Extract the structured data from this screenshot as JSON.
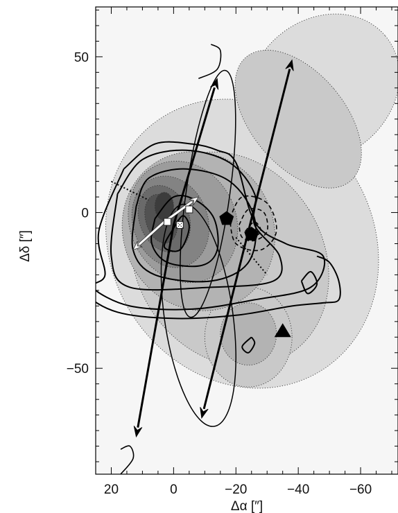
{
  "chart_data": {
    "type": "contour",
    "title": "",
    "xlabel": "Δα [″]",
    "ylabel": "Δδ [″]",
    "x_axis": {
      "range": [
        25,
        -72
      ],
      "reversed": true,
      "ticks": [
        20,
        0,
        -20,
        -40,
        -60
      ],
      "tick_labels": [
        "20",
        "0",
        "−20",
        "−40",
        "−60"
      ]
    },
    "y_axis": {
      "range": [
        -84,
        66
      ],
      "ticks": [
        50,
        0,
        -50
      ],
      "tick_labels": [
        "50",
        "0",
        "−50"
      ]
    },
    "grid": false,
    "legend": "none",
    "colors": {
      "background_field": "#ebebeb",
      "shade_levels": [
        "#ebebeb",
        "#dcdcdc",
        "#c9c9c9",
        "#b3b3b3",
        "#9c9c9c",
        "#838383",
        "#6a6a6a",
        "#525252",
        "#3c3c3c"
      ],
      "line": "#000000",
      "marker_white": "#ffffff"
    },
    "layers": [
      {
        "name": "greyscale filled contours",
        "style": "filled, dotted outlines",
        "blobs": [
          {
            "level": 1,
            "center": [
              -22,
              -10
            ],
            "rx": 42,
            "ry": 48,
            "angle": 32
          },
          {
            "level": 1,
            "center": [
              -48,
              40
            ],
            "rx": 26,
            "ry": 22,
            "angle": 40
          },
          {
            "level": 2,
            "center": [
              -18,
              -15
            ],
            "rx": 30,
            "ry": 36,
            "angle": 32
          },
          {
            "level": 2,
            "center": [
              -40,
              30
            ],
            "rx": 15,
            "ry": 26,
            "angle": 40
          },
          {
            "level": 2,
            "center": [
              -24,
              -40
            ],
            "rx": 14,
            "ry": 16,
            "angle": 0
          },
          {
            "level": 3,
            "center": [
              -8,
              -6
            ],
            "rx": 24,
            "ry": 26,
            "angle": 30
          },
          {
            "level": 3,
            "center": [
              -24,
              -39
            ],
            "rx": 9,
            "ry": 10,
            "angle": 0
          },
          {
            "level": 4,
            "center": [
              -3,
              -3
            ],
            "rx": 17,
            "ry": 20,
            "angle": 25
          },
          {
            "level": 5,
            "center": [
              1,
              -3
            ],
            "rx": 12,
            "ry": 15,
            "angle": 20
          },
          {
            "level": 6,
            "center": [
              3,
              -2
            ],
            "rx": 8,
            "ry": 11,
            "angle": 20
          },
          {
            "level": 7,
            "center": [
              4,
              -2
            ],
            "rx": 5,
            "ry": 8,
            "angle": 15
          },
          {
            "level": 8,
            "center": [
              3,
              2
            ],
            "rx": 3,
            "ry": 4.5,
            "angle": 0
          }
        ]
      },
      {
        "name": "solid contours",
        "style": "solid",
        "curves": [
          [
            [
              0,
              -5
            ],
            [
              3,
              -11
            ],
            [
              -2,
              -12
            ],
            [
              -5,
              -5
            ],
            [
              -3,
              -1
            ],
            [
              0,
              -5
            ]
          ],
          [
            [
              6,
              -2
            ],
            [
              7,
              -10
            ],
            [
              2,
              -16
            ],
            [
              -9,
              -17
            ],
            [
              -14,
              -12
            ],
            [
              -13,
              -2
            ],
            [
              -7,
              4
            ],
            [
              0,
              5
            ],
            [
              6,
              -2
            ]
          ],
          [
            [
              12,
              2
            ],
            [
              13,
              -12
            ],
            [
              6,
              -20
            ],
            [
              -12,
              -22
            ],
            [
              -24,
              -16
            ],
            [
              -26,
              -2
            ],
            [
              -18,
              10
            ],
            [
              -4,
              14
            ],
            [
              8,
              11
            ],
            [
              12,
              2
            ]
          ],
          [
            [
              18,
              6
            ],
            [
              20,
              -14
            ],
            [
              14,
              -24
            ],
            [
              -12,
              -24
            ],
            [
              -32,
              -22
            ],
            [
              -34,
              -14
            ],
            [
              -26,
              -4
            ],
            [
              -26,
              6
            ],
            [
              -18,
              16
            ],
            [
              -4,
              20
            ],
            [
              10,
              17
            ],
            [
              18,
              6
            ]
          ],
          [
            [
              16,
              14
            ],
            [
              24,
              -6
            ],
            [
              22,
              -20
            ],
            [
              26,
              -24
            ],
            [
              14,
              -30
            ],
            [
              -6,
              -31
            ],
            [
              -26,
              -28
            ],
            [
              -44,
              -24
            ],
            [
              -48,
              -14
            ],
            [
              -36,
              -10
            ],
            [
              -26,
              -3
            ],
            [
              -20,
              16
            ],
            [
              -14,
              20
            ],
            [
              -6,
              22
            ],
            [
              6,
              22
            ],
            [
              16,
              14
            ]
          ],
          [
            [
              26,
              -20
            ],
            [
              28,
              -26
            ],
            [
              18,
              -32
            ],
            [
              0,
              -34
            ],
            [
              -20,
              -33
            ],
            [
              -38,
              -30
            ],
            [
              -48,
              -29
            ],
            [
              -53,
              -28
            ],
            [
              -53,
              -22
            ],
            [
              -50,
              -16
            ],
            [
              -46,
              -14
            ]
          ],
          [
            [
              -41,
              -22
            ],
            [
              -44,
              -19
            ],
            [
              -46,
              -23
            ],
            [
              -43,
              -26
            ],
            [
              -41,
              -22
            ]
          ],
          [
            [
              -25,
              -40
            ],
            [
              -22,
              -43
            ],
            [
              -24,
              -45
            ],
            [
              -26,
              -42
            ],
            [
              -25,
              -40
            ]
          ]
        ]
      },
      {
        "name": "dashed contours",
        "style": "dashed",
        "curves": [
          [
            [
              -18,
              -2
            ],
            [
              -22,
              5
            ],
            [
              -30,
              3
            ],
            [
              -33,
              -6
            ],
            [
              -28,
              -12
            ],
            [
              -20,
              -10
            ],
            [
              -18,
              -2
            ]
          ],
          [
            [
              -21,
              -4
            ],
            [
              -24,
              1
            ],
            [
              -29,
              0
            ],
            [
              -30,
              -6
            ],
            [
              -26,
              -9
            ],
            [
              -22,
              -8
            ],
            [
              -21,
              -4
            ]
          ],
          [
            [
              -23,
              -6
            ],
            [
              -26,
              -3
            ],
            [
              -28,
              -6
            ],
            [
              -25,
              -8
            ],
            [
              -23,
              -6
            ]
          ]
        ]
      },
      {
        "name": "thin ellipses",
        "style": "solid",
        "ellipses": [
          {
            "center": [
              -11,
              6
            ],
            "rx": 7,
            "ry": 40,
            "angle": -8
          },
          {
            "center": [
              -8,
              -33
            ],
            "rx": 11,
            "ry": 36,
            "angle": 8
          }
        ]
      },
      {
        "name": "thin hooks",
        "style": "solid",
        "curves": [
          [
            [
              -8,
              43
            ],
            [
              -14,
              46
            ],
            [
              -15,
              52
            ],
            [
              -12,
              54
            ]
          ],
          [
            [
              17,
              -84
            ],
            [
              13,
              -79
            ],
            [
              14,
              -75
            ],
            [
              17,
              -76
            ]
          ]
        ]
      },
      {
        "name": "dotted line",
        "style": "dotted",
        "segments": [
          [
            [
              20,
              10
            ],
            [
              8,
              4
            ]
          ],
          [
            [
              -20,
              -8
            ],
            [
              -30,
              -20
            ]
          ]
        ]
      },
      {
        "name": "thick black arrows",
        "style": "solid arrow",
        "arrows": [
          [
            [
              0,
              -4
            ],
            [
              -14,
              43
            ]
          ],
          [
            [
              0,
              -4
            ],
            [
              12,
              -72
            ]
          ],
          [
            [
              -25,
              -2
            ],
            [
              -38,
              49
            ]
          ],
          [
            [
              -25,
              -2
            ],
            [
              -9,
              -66
            ]
          ]
        ]
      },
      {
        "name": "white arrows",
        "style": "white arrow",
        "arrows": [
          [
            [
              3,
              -3
            ],
            [
              -8,
              5
            ]
          ],
          [
            [
              3,
              -3
            ],
            [
              13,
              -12
            ]
          ]
        ]
      },
      {
        "name": "markers",
        "points": [
          {
            "shape": "square",
            "color": "white",
            "x": 2,
            "y": -3
          },
          {
            "shape": "square",
            "color": "white",
            "x": -5,
            "y": 1
          },
          {
            "shape": "square",
            "color": "white-checked",
            "x": -2,
            "y": -4
          },
          {
            "shape": "pentagon",
            "color": "black",
            "x": -17,
            "y": -2
          },
          {
            "shape": "pentagon",
            "color": "black",
            "x": -25,
            "y": -7
          },
          {
            "shape": "triangle",
            "color": "black",
            "x": -35,
            "y": -38
          }
        ]
      }
    ]
  }
}
